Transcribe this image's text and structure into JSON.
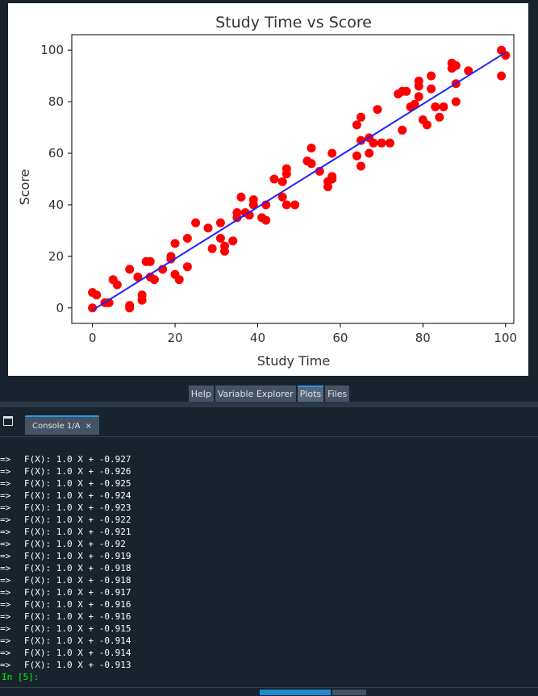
{
  "chart_data": {
    "type": "scatter",
    "title": "Study Time vs Score",
    "xlabel": "Study Time",
    "ylabel": "Score",
    "xlim": [
      -5,
      102
    ],
    "ylim": [
      -6,
      106
    ],
    "xticks": [
      0,
      20,
      40,
      60,
      80,
      100
    ],
    "yticks": [
      0,
      20,
      40,
      60,
      80,
      100
    ],
    "grid": false,
    "point_color": "#ff0000",
    "line_color": "#2222ff",
    "fit_line": {
      "x": [
        0,
        100
      ],
      "y": [
        -0.9,
        99.1
      ]
    },
    "points": [
      [
        0,
        0
      ],
      [
        0,
        6
      ],
      [
        1,
        5
      ],
      [
        3,
        2
      ],
      [
        4,
        2
      ],
      [
        5,
        11
      ],
      [
        6,
        9
      ],
      [
        9,
        1
      ],
      [
        9,
        0
      ],
      [
        9,
        15
      ],
      [
        11,
        12
      ],
      [
        12,
        3
      ],
      [
        12,
        5
      ],
      [
        13,
        18
      ],
      [
        14,
        18
      ],
      [
        14,
        12
      ],
      [
        15,
        11
      ],
      [
        17,
        15
      ],
      [
        19,
        20
      ],
      [
        19,
        19
      ],
      [
        20,
        13
      ],
      [
        20,
        25
      ],
      [
        21,
        11
      ],
      [
        23,
        27
      ],
      [
        23,
        16
      ],
      [
        25,
        33
      ],
      [
        28,
        31
      ],
      [
        29,
        23
      ],
      [
        31,
        33
      ],
      [
        31,
        27
      ],
      [
        32,
        24
      ],
      [
        32,
        22
      ],
      [
        34,
        26
      ],
      [
        35,
        37
      ],
      [
        35,
        35
      ],
      [
        36,
        43
      ],
      [
        37,
        37
      ],
      [
        38,
        36
      ],
      [
        39,
        42
      ],
      [
        39,
        40
      ],
      [
        41,
        35
      ],
      [
        42,
        40
      ],
      [
        42,
        34
      ],
      [
        44,
        50
      ],
      [
        46,
        43
      ],
      [
        46,
        49
      ],
      [
        47,
        52
      ],
      [
        47,
        54
      ],
      [
        47,
        40
      ],
      [
        49,
        40
      ],
      [
        52,
        57
      ],
      [
        53,
        56
      ],
      [
        53,
        62
      ],
      [
        55,
        53
      ],
      [
        57,
        49
      ],
      [
        57,
        47
      ],
      [
        58,
        51
      ],
      [
        58,
        50
      ],
      [
        58,
        60
      ],
      [
        64,
        71
      ],
      [
        64,
        59
      ],
      [
        65,
        55
      ],
      [
        65,
        65
      ],
      [
        65,
        74
      ],
      [
        67,
        60
      ],
      [
        67,
        66
      ],
      [
        68,
        64
      ],
      [
        69,
        77
      ],
      [
        70,
        64
      ],
      [
        72,
        64
      ],
      [
        74,
        83
      ],
      [
        75,
        69
      ],
      [
        75,
        84
      ],
      [
        76,
        84
      ],
      [
        77,
        78
      ],
      [
        78,
        79
      ],
      [
        79,
        82
      ],
      [
        79,
        88
      ],
      [
        79,
        86
      ],
      [
        80,
        73
      ],
      [
        81,
        71
      ],
      [
        82,
        90
      ],
      [
        82,
        85
      ],
      [
        83,
        78
      ],
      [
        84,
        74
      ],
      [
        85,
        78
      ],
      [
        87,
        95
      ],
      [
        87,
        93
      ],
      [
        88,
        94
      ],
      [
        88,
        87
      ],
      [
        88,
        80
      ],
      [
        91,
        92
      ],
      [
        99,
        100
      ],
      [
        99,
        90
      ],
      [
        100,
        98
      ]
    ]
  },
  "pane_tabs": [
    "Help",
    "Variable Explorer",
    "Plots",
    "Files"
  ],
  "active_pane_tab": "Plots",
  "console": {
    "tab_label": "Console 1/A",
    "close_glyph": "×",
    "arrow": "=>",
    "lines": [
      "F(X): 1.0 X + -0.927",
      "F(X): 1.0 X + -0.926",
      "F(X): 1.0 X + -0.925",
      "F(X): 1.0 X + -0.924",
      "F(X): 1.0 X + -0.923",
      "F(X): 1.0 X + -0.922",
      "F(X): 1.0 X + -0.921",
      "F(X): 1.0 X + -0.92",
      "F(X): 1.0 X + -0.919",
      "F(X): 1.0 X + -0.918",
      "F(X): 1.0 X + -0.918",
      "F(X): 1.0 X + -0.917",
      "F(X): 1.0 X + -0.916",
      "F(X): 1.0 X + -0.916",
      "F(X): 1.0 X + -0.915",
      "F(X): 1.0 X + -0.914",
      "F(X): 1.0 X + -0.914",
      "F(X): 1.0 X + -0.913"
    ],
    "prompt": "In [5]:"
  }
}
